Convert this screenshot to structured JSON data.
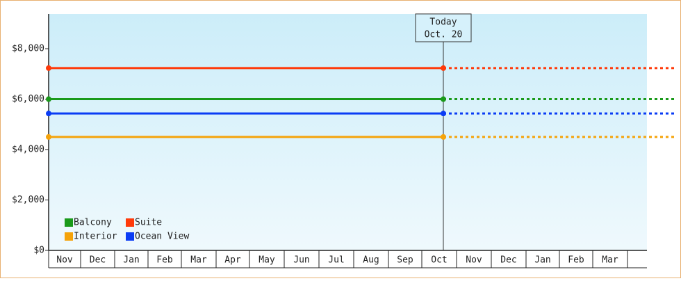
{
  "chart_data": {
    "type": "line",
    "categories": [
      "Nov",
      "Dec",
      "Jan",
      "Feb",
      "Mar",
      "Apr",
      "May",
      "Jun",
      "Jul",
      "Aug",
      "Sep",
      "Oct",
      "Nov",
      "Dec",
      "Jan",
      "Feb",
      "Mar",
      null
    ],
    "series": [
      {
        "name": "Balcony",
        "color": "#1a9a1a",
        "value": 6000
      },
      {
        "name": "Suite",
        "color": "#ff3a0a",
        "value": 7230
      },
      {
        "name": "Interior",
        "color": "#f5a30a",
        "value": 4500
      },
      {
        "name": "Ocean View",
        "color": "#0a3cf5",
        "value": 5430
      }
    ],
    "today": [
      "Today",
      "Oct. 20"
    ],
    "ylim": [
      0,
      9380
    ],
    "yticks": [
      {
        "value": 0,
        "label": "$0"
      },
      {
        "value": 2000,
        "label": "$2,000"
      },
      {
        "value": 4000,
        "label": "$4,000"
      },
      {
        "value": 6000,
        "label": "$6,000"
      },
      {
        "value": 8000,
        "label": "$8,000"
      }
    ]
  }
}
